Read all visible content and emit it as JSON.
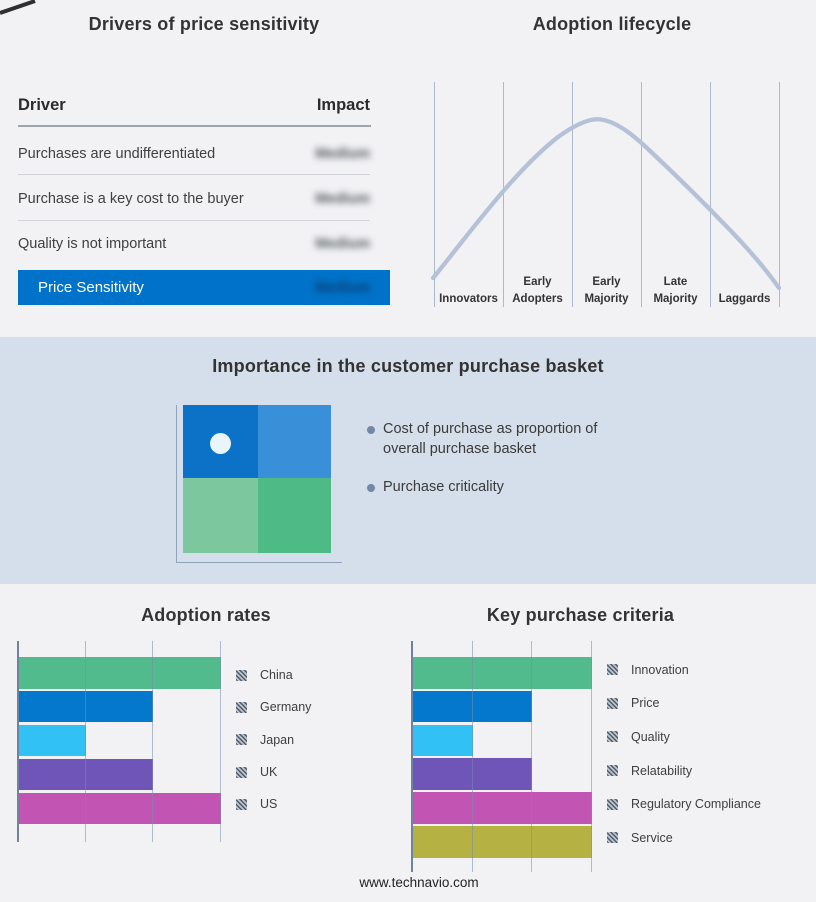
{
  "drivers_panel": {
    "title": "Drivers of price sensitivity",
    "table": {
      "driver_header": "Driver",
      "impact_header": "Impact",
      "rows": [
        {
          "driver": "Purchases are undifferentiated",
          "impact": "Medium",
          "impact_blurred": true
        },
        {
          "driver": "Purchase is a key cost to the buyer",
          "impact": "Medium",
          "impact_blurred": true
        },
        {
          "driver": "Quality is not important",
          "impact": "Medium",
          "impact_blurred": true
        }
      ],
      "highlight_row": {
        "driver": "Price Sensitivity",
        "impact": "Medium",
        "impact_blurred": true,
        "background": "#0072c9"
      }
    }
  },
  "lifecycle_panel": {
    "title": "Adoption lifecycle"
  },
  "basket_panel": {
    "title": "Importance in the customer purchase basket",
    "band_background": "#d5dfeb",
    "quadrant": {
      "top_left": "#0b72c8",
      "top_right": "#3990d8",
      "bottom_left": "#7dc79e",
      "bottom_right": "#4eba85",
      "marker": "#eaf4fb"
    },
    "bullets": [
      "Cost of purchase as proportion of overall purchase basket",
      "Purchase criticality"
    ]
  },
  "footer": {
    "url": "www.technavio.com"
  },
  "chart_data": [
    {
      "type": "line",
      "name": "adoption_lifecycle",
      "title": "Adoption lifecycle",
      "categories": [
        "Innovators",
        "Early Adopters",
        "Early Majority",
        "Late Majority",
        "Laggards"
      ],
      "description": "Bell-shaped adoption curve rising from Innovators, peaking over Early Majority, falling to Laggards",
      "curve_color": "#b4c1d6",
      "grid": "vertical separators only",
      "y_axis": "unlabeled"
    },
    {
      "type": "bar",
      "name": "adoption_rates",
      "title": "Adoption rates",
      "orientation": "horizontal",
      "categories": [
        "China",
        "Germany",
        "Japan",
        "UK",
        "US"
      ],
      "values": [
        3,
        2,
        1,
        2,
        3
      ],
      "xlim": [
        0,
        3
      ],
      "value_unit": "gridline units (axis unlabeled)",
      "colors": [
        "#52bb8d",
        "#0478cd",
        "#32c1f4",
        "#6f55b8",
        "#c254b4"
      ],
      "grid": "vertical",
      "legend_position": "right"
    },
    {
      "type": "bar",
      "name": "key_purchase_criteria",
      "title": "Key purchase criteria",
      "orientation": "horizontal",
      "categories": [
        "Innovation",
        "Price",
        "Quality",
        "Relatability",
        "Regulatory Compliance",
        "Service"
      ],
      "values": [
        3,
        2,
        1,
        2,
        3,
        3
      ],
      "xlim": [
        0,
        3
      ],
      "value_unit": "gridline units (axis unlabeled)",
      "colors": [
        "#52bb8d",
        "#0478cd",
        "#32c1f4",
        "#6f55b8",
        "#c254b4",
        "#b5b243"
      ],
      "grid": "vertical",
      "legend_position": "right"
    }
  ]
}
